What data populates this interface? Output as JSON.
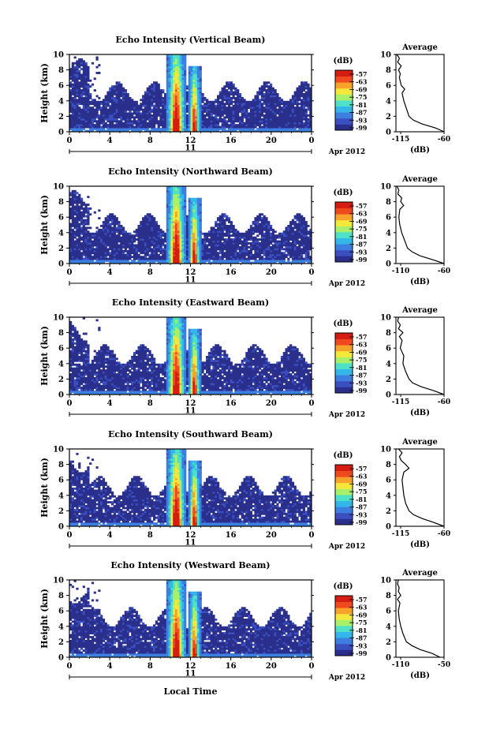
{
  "common": {
    "ylabel": "Height (km)",
    "yticks": [
      "0",
      "2",
      "4",
      "6",
      "8",
      "10"
    ],
    "xticks": [
      "0",
      "4",
      "8",
      "12",
      "16",
      "20",
      "0"
    ],
    "date_day": "11",
    "date_suffix": "Apr 2012",
    "cb_unit": "(dB)",
    "cb_ticks": [
      "-57",
      "-63",
      "-69",
      "-75",
      "-81",
      "-87",
      "-93",
      "-99"
    ],
    "avg_title": "Average",
    "avg_xlabel": "(dB)",
    "xlabel": "Local Time",
    "colors": [
      "#2a2f8c",
      "#3a4fc0",
      "#3d7fe0",
      "#35b6e8",
      "#4fe0c8",
      "#a8f06a",
      "#f5e83a",
      "#f7a22a",
      "#ef4a1e",
      "#d61d12"
    ]
  },
  "chart_data": [
    {
      "type": "heatmap",
      "title": "Echo Intensity (Vertical Beam)",
      "x_range_hours": [
        0,
        24
      ],
      "y_range_km": [
        0,
        10
      ],
      "color_range_db": [
        -99,
        -57
      ],
      "avg_profile": {
        "type": "line",
        "xlim": [
          -115,
          -60
        ],
        "xticks": [
          "-115",
          "-60"
        ],
        "height_km": [
          0,
          0.5,
          1,
          1.5,
          2,
          3,
          4,
          5,
          5.5,
          6,
          7,
          7.5,
          8,
          8.5,
          9,
          9.5,
          10
        ],
        "db": [
          -60,
          -70,
          -85,
          -95,
          -100,
          -103,
          -106,
          -108,
          -105,
          -109,
          -111,
          -110,
          -112,
          -109,
          -113,
          -111,
          -114
        ]
      }
    },
    {
      "type": "heatmap",
      "title": "Echo Intensity (Northward Beam)",
      "x_range_hours": [
        0,
        24
      ],
      "y_range_km": [
        0,
        10
      ],
      "color_range_db": [
        -99,
        -57
      ],
      "avg_profile": {
        "type": "line",
        "xlim": [
          -110,
          -60
        ],
        "xticks": [
          "-110",
          "-60"
        ],
        "height_km": [
          0,
          0.5,
          1,
          1.5,
          2,
          3,
          4,
          5,
          6,
          7,
          7.5,
          8,
          8.5,
          9,
          9.5,
          10
        ],
        "db": [
          -60,
          -72,
          -85,
          -93,
          -98,
          -101,
          -104,
          -106,
          -107,
          -106,
          -102,
          -105,
          -104,
          -108,
          -107,
          -109
        ]
      }
    },
    {
      "type": "heatmap",
      "title": "Echo Intensity (Eastward Beam)",
      "x_range_hours": [
        0,
        24
      ],
      "y_range_km": [
        0,
        10
      ],
      "color_range_db": [
        -99,
        -57
      ],
      "avg_profile": {
        "type": "line",
        "xlim": [
          -115,
          -60
        ],
        "xticks": [
          "-115",
          "-60"
        ],
        "height_km": [
          0,
          0.5,
          1,
          1.5,
          2,
          3,
          4,
          5,
          6,
          7,
          7.5,
          8,
          8.5,
          9,
          9.5,
          10
        ],
        "db": [
          -60,
          -72,
          -86,
          -96,
          -100,
          -104,
          -107,
          -106,
          -110,
          -108,
          -111,
          -107,
          -112,
          -110,
          -113,
          -112
        ]
      }
    },
    {
      "type": "heatmap",
      "title": "Echo Intensity (Southward Beam)",
      "x_range_hours": [
        0,
        24
      ],
      "y_range_km": [
        0,
        10
      ],
      "color_range_db": [
        -99,
        -57
      ],
      "avg_profile": {
        "type": "line",
        "xlim": [
          -115,
          -60
        ],
        "xticks": [
          "-115",
          "-60"
        ],
        "height_km": [
          0,
          0.5,
          1,
          1.5,
          2,
          3,
          4,
          5,
          6,
          7,
          7.5,
          8,
          8.5,
          9,
          9.5,
          10
        ],
        "db": [
          -60,
          -72,
          -85,
          -95,
          -100,
          -104,
          -106,
          -107,
          -108,
          -106,
          -100,
          -104,
          -109,
          -111,
          -108,
          -112
        ]
      }
    },
    {
      "type": "heatmap",
      "title": "Echo Intensity (Westward Beam)",
      "x_range_hours": [
        0,
        24
      ],
      "y_range_km": [
        0,
        10
      ],
      "color_range_db": [
        -99,
        -57
      ],
      "avg_profile": {
        "type": "line",
        "xlim": [
          -110,
          -50
        ],
        "xticks": [
          "-110",
          "-50"
        ],
        "height_km": [
          0,
          0.5,
          1,
          1.5,
          2,
          3,
          4,
          5,
          6,
          7,
          7.5,
          8,
          8.5,
          9,
          9.5,
          10
        ],
        "db": [
          -55,
          -65,
          -80,
          -90,
          -97,
          -101,
          -104,
          -106,
          -107,
          -105,
          -108,
          -104,
          -107,
          -106,
          -108,
          -107
        ]
      }
    }
  ]
}
